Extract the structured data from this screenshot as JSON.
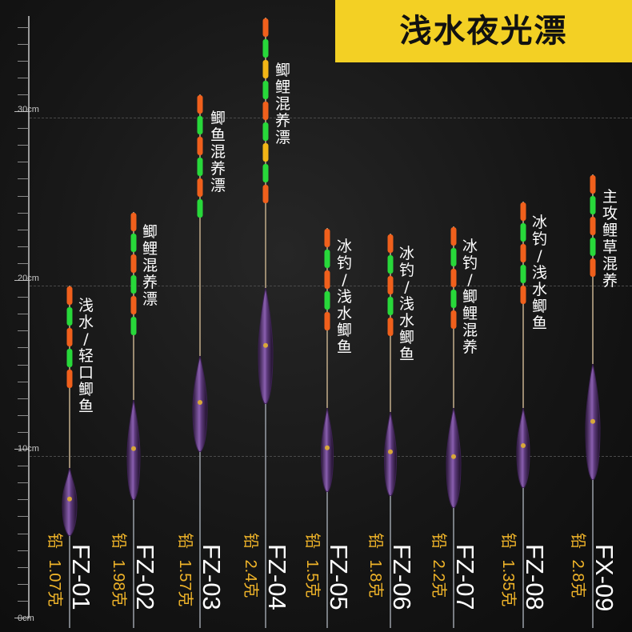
{
  "title": "浅水夜光漂",
  "scale": {
    "labels": [
      "30cm",
      "20cm",
      "10cm",
      "0cm"
    ]
  },
  "colors": {
    "orange": "#f0601c",
    "green": "#28d83a",
    "yellow": "#f2b516",
    "gold": "#f0b429",
    "body": "#6a3f8a"
  },
  "lead_prefix": "铅",
  "floats": [
    {
      "model": "FZ-01",
      "weight": "1.07克",
      "label": [
        "浅",
        "水",
        "/",
        "轻",
        "口",
        "鲫",
        "鱼"
      ]
    },
    {
      "model": "FZ-02",
      "weight": "1.98克",
      "label": [
        "鲫",
        "鲤",
        "混",
        "养",
        "漂"
      ]
    },
    {
      "model": "FZ-03",
      "weight": "1.57克",
      "label": [
        "鲫",
        "鱼",
        "混",
        "养",
        "漂"
      ]
    },
    {
      "model": "FZ-04",
      "weight": "2.4克",
      "label": [
        "鲫",
        "鲤",
        "混",
        "养",
        "漂"
      ]
    },
    {
      "model": "FZ-05",
      "weight": "1.5克",
      "label": [
        "冰",
        "钓",
        "/",
        "浅",
        "水",
        "鲫",
        "鱼"
      ]
    },
    {
      "model": "FZ-06",
      "weight": "1.8克",
      "label": [
        "冰",
        "钓",
        "/",
        "浅",
        "水",
        "鲫",
        "鱼"
      ]
    },
    {
      "model": "FZ-07",
      "weight": "2.2克",
      "label": [
        "冰",
        "钓",
        "/",
        "鲫",
        "鲤",
        "混",
        "养"
      ]
    },
    {
      "model": "FZ-08",
      "weight": "1.35克",
      "label": [
        "冰",
        "钓",
        "/",
        "浅",
        "水",
        "鲫",
        "鱼"
      ]
    },
    {
      "model": "FX-09",
      "weight": "2.8克",
      "label": [
        "主",
        "攻",
        "鲤",
        "草",
        "混",
        "养"
      ]
    }
  ]
}
